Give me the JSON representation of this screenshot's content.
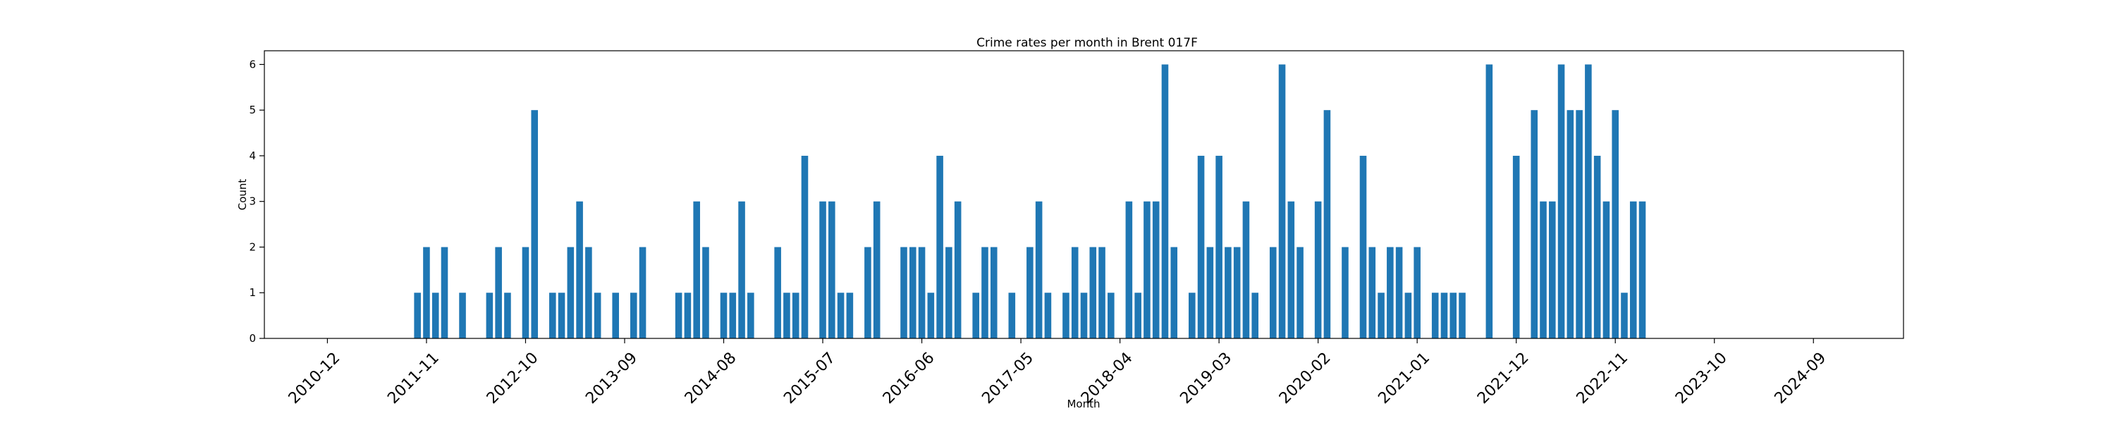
{
  "chart_data": {
    "type": "bar",
    "title": "Crime rates per month in Brent 017F",
    "xlabel": "Month",
    "ylabel": "Count",
    "ylim": [
      0,
      6.3
    ],
    "yticks": [
      0,
      1,
      2,
      3,
      4,
      5,
      6
    ],
    "xlim": [
      "2010-05",
      "2025-07"
    ],
    "xticks": [
      "2010-12",
      "2011-11",
      "2012-10",
      "2013-09",
      "2014-08",
      "2015-07",
      "2016-06",
      "2017-05",
      "2018-04",
      "2019-03",
      "2020-02",
      "2021-01",
      "2021-12",
      "2022-11",
      "2023-10",
      "2024-09"
    ],
    "grid": false,
    "bar_color": "#1f77b4",
    "x": [
      "2011-10",
      "2011-11",
      "2011-12",
      "2012-01",
      "2012-03",
      "2012-06",
      "2012-07",
      "2012-08",
      "2012-10",
      "2012-11",
      "2013-01",
      "2013-02",
      "2013-03",
      "2013-04",
      "2013-05",
      "2013-06",
      "2013-08",
      "2013-10",
      "2013-11",
      "2014-03",
      "2014-04",
      "2014-05",
      "2014-06",
      "2014-08",
      "2014-09",
      "2014-10",
      "2014-11",
      "2015-02",
      "2015-03",
      "2015-04",
      "2015-05",
      "2015-07",
      "2015-08",
      "2015-09",
      "2015-10",
      "2015-12",
      "2016-01",
      "2016-04",
      "2016-05",
      "2016-06",
      "2016-07",
      "2016-08",
      "2016-09",
      "2016-10",
      "2016-12",
      "2017-01",
      "2017-02",
      "2017-04",
      "2017-06",
      "2017-07",
      "2017-08",
      "2017-10",
      "2017-11",
      "2017-12",
      "2018-01",
      "2018-02",
      "2018-03",
      "2018-05",
      "2018-06",
      "2018-07",
      "2018-08",
      "2018-09",
      "2018-10",
      "2018-12",
      "2019-01",
      "2019-02",
      "2019-03",
      "2019-04",
      "2019-05",
      "2019-06",
      "2019-07",
      "2019-09",
      "2019-10",
      "2019-11",
      "2019-12",
      "2020-02",
      "2020-03",
      "2020-05",
      "2020-07",
      "2020-08",
      "2020-09",
      "2020-10",
      "2020-11",
      "2020-12",
      "2021-01",
      "2021-03",
      "2021-04",
      "2021-05",
      "2021-06",
      "2021-09",
      "2021-12",
      "2022-02",
      "2022-03",
      "2022-04",
      "2022-05",
      "2022-06",
      "2022-07",
      "2022-08",
      "2022-09",
      "2022-10",
      "2022-11",
      "2022-12",
      "2023-01",
      "2023-02"
    ],
    "values": [
      1,
      2,
      1,
      2,
      1,
      1,
      2,
      1,
      2,
      5,
      1,
      1,
      2,
      3,
      2,
      1,
      1,
      1,
      2,
      1,
      1,
      3,
      2,
      1,
      1,
      3,
      1,
      2,
      1,
      1,
      4,
      3,
      3,
      1,
      1,
      2,
      3,
      2,
      2,
      2,
      1,
      4,
      2,
      3,
      1,
      2,
      2,
      1,
      2,
      3,
      1,
      1,
      2,
      1,
      2,
      2,
      1,
      3,
      1,
      3,
      3,
      6,
      2,
      1,
      4,
      2,
      4,
      2,
      2,
      3,
      1,
      2,
      6,
      3,
      2,
      3,
      5,
      2,
      4,
      2,
      1,
      2,
      2,
      1,
      2,
      1,
      1,
      1,
      1,
      6,
      4,
      5,
      3,
      3,
      6,
      5,
      5,
      6,
      4,
      3,
      5,
      1,
      3,
      3
    ]
  }
}
